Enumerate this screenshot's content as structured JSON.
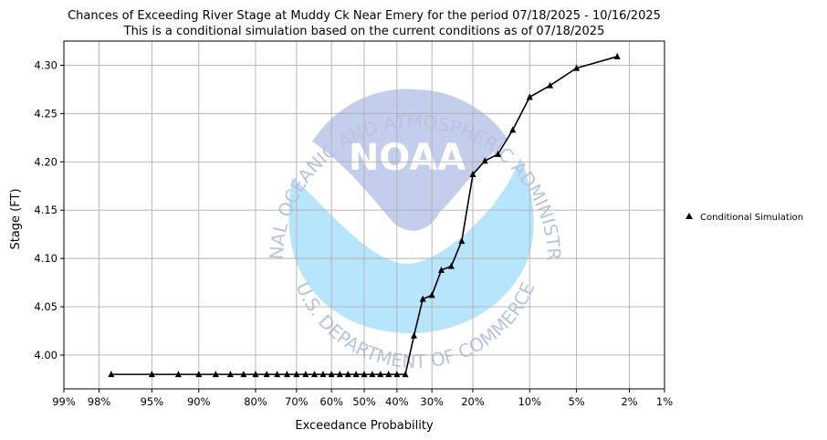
{
  "chart_data": {
    "type": "line",
    "title": "Chances of Exceeding River Stage at Muddy Ck Near Emery for the period 07/18/2025 - 10/16/2025",
    "subtitle": "This is a conditional simulation based on the current conditions as of 07/18/2025",
    "xlabel": "Exceedance Probability",
    "ylabel": "Stage (FT)",
    "x_scale": "normal-probability",
    "x_ticks": [
      0.99,
      0.98,
      0.95,
      0.9,
      0.8,
      0.7,
      0.6,
      0.5,
      0.4,
      0.3,
      0.2,
      0.1,
      0.05,
      0.02,
      0.01
    ],
    "x_tick_labels": [
      "99%",
      "98%",
      "95%",
      "90%",
      "80%",
      "70%",
      "60%",
      "50%",
      "40%",
      "30%",
      "20%",
      "10%",
      "5%",
      "2%",
      "1%"
    ],
    "ylim": [
      3.965,
      4.325
    ],
    "y_ticks": [
      4.0,
      4.05,
      4.1,
      4.15,
      4.2,
      4.25,
      4.3
    ],
    "y_tick_labels": [
      "4.00",
      "4.05",
      "4.10",
      "4.15",
      "4.20",
      "4.25",
      "4.30"
    ],
    "grid": true,
    "legend": "right",
    "series": [
      {
        "name": "Conditional Simulation",
        "color": "#000000",
        "marker": "triangle",
        "points": [
          {
            "x": 0.975,
            "y": 3.98
          },
          {
            "x": 0.95,
            "y": 3.98
          },
          {
            "x": 0.925,
            "y": 3.98
          },
          {
            "x": 0.9,
            "y": 3.98
          },
          {
            "x": 0.875,
            "y": 3.98
          },
          {
            "x": 0.85,
            "y": 3.98
          },
          {
            "x": 0.825,
            "y": 3.98
          },
          {
            "x": 0.8,
            "y": 3.98
          },
          {
            "x": 0.775,
            "y": 3.98
          },
          {
            "x": 0.75,
            "y": 3.98
          },
          {
            "x": 0.725,
            "y": 3.98
          },
          {
            "x": 0.7,
            "y": 3.98
          },
          {
            "x": 0.675,
            "y": 3.98
          },
          {
            "x": 0.65,
            "y": 3.98
          },
          {
            "x": 0.625,
            "y": 3.98
          },
          {
            "x": 0.6,
            "y": 3.98
          },
          {
            "x": 0.575,
            "y": 3.98
          },
          {
            "x": 0.55,
            "y": 3.98
          },
          {
            "x": 0.525,
            "y": 3.98
          },
          {
            "x": 0.5,
            "y": 3.98
          },
          {
            "x": 0.475,
            "y": 3.98
          },
          {
            "x": 0.45,
            "y": 3.98
          },
          {
            "x": 0.425,
            "y": 3.98
          },
          {
            "x": 0.4,
            "y": 3.98
          },
          {
            "x": 0.375,
            "y": 3.98
          },
          {
            "x": 0.35,
            "y": 4.02
          },
          {
            "x": 0.325,
            "y": 4.058
          },
          {
            "x": 0.3,
            "y": 4.062
          },
          {
            "x": 0.275,
            "y": 4.088
          },
          {
            "x": 0.25,
            "y": 4.092
          },
          {
            "x": 0.225,
            "y": 4.118
          },
          {
            "x": 0.2,
            "y": 4.187
          },
          {
            "x": 0.175,
            "y": 4.201
          },
          {
            "x": 0.15,
            "y": 4.208
          },
          {
            "x": 0.125,
            "y": 4.233
          },
          {
            "x": 0.1,
            "y": 4.267
          },
          {
            "x": 0.075,
            "y": 4.279
          },
          {
            "x": 0.05,
            "y": 4.297
          },
          {
            "x": 0.025,
            "y": 4.309
          }
        ]
      }
    ]
  },
  "watermark": {
    "logo_text": "NOAA",
    "top_text": "NATIONAL OCEANIC AND ATMOSPHERIC ADMINISTRATION",
    "bottom_text": "U.S. DEPARTMENT OF COMMERCE",
    "colors": {
      "upper": "#c3cdec",
      "lower": "#b7e5fb",
      "text": "#b8c4df"
    }
  }
}
